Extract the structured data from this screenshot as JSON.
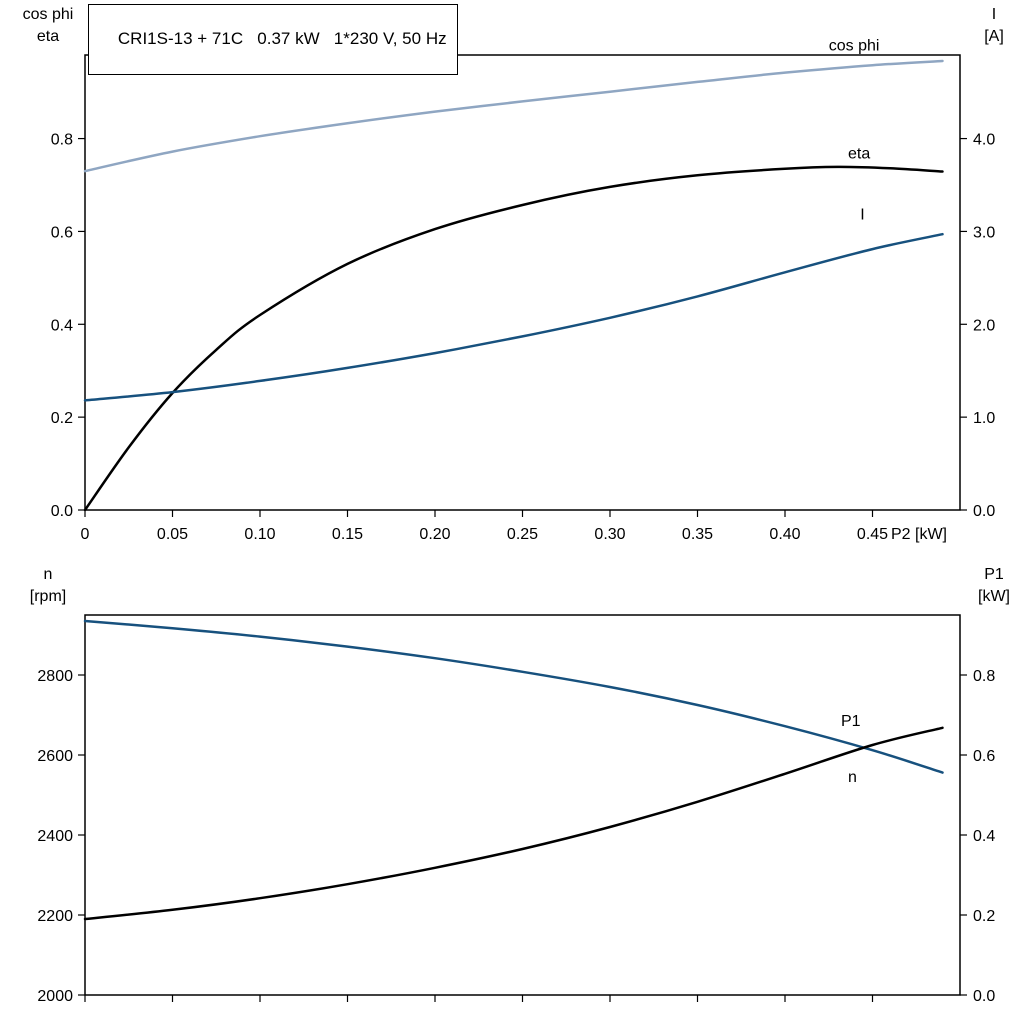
{
  "page": {
    "background": "#ffffff"
  },
  "colors": {
    "black": "#000000",
    "light_blue": "#8fa6c2",
    "dark_blue": "#17517e",
    "axis": "#000000"
  },
  "chart_data": [
    {
      "type": "line",
      "title": "CRI1S-13 + 71C   0.37 kW   1*230 V, 50 Hz",
      "xlabel": "P2 [kW]",
      "xlim": [
        0,
        0.5
      ],
      "grid": false,
      "x_ticks": [
        0,
        0.05,
        0.1,
        0.15,
        0.2,
        0.25,
        0.3,
        0.35,
        0.4,
        0.45
      ],
      "x_tick_labels": [
        "0",
        "0.05",
        "0.10",
        "0.15",
        "0.20",
        "0.25",
        "0.30",
        "0.35",
        "0.40",
        "0.45"
      ],
      "axes": {
        "left": {
          "header_lines": [
            "cos phi",
            "eta"
          ],
          "lim": [
            0,
            0.98
          ],
          "ticks": [
            0,
            0.2,
            0.4,
            0.6,
            0.8
          ],
          "tick_labels": [
            "0.0",
            "0.2",
            "0.4",
            "0.6",
            "0.8"
          ]
        },
        "right": {
          "header_lines": [
            "I",
            "[A]"
          ],
          "lim": [
            0,
            4.9
          ],
          "ticks": [
            0,
            1,
            2,
            3,
            4
          ],
          "tick_labels": [
            "0.0",
            "1.0",
            "2.0",
            "3.0",
            "4.0"
          ]
        }
      },
      "series": [
        {
          "name": "cos phi",
          "axis": "left",
          "color": "light_blue",
          "label_at": [
            0.425,
            0.99
          ],
          "x": [
            0,
            0.05,
            0.1,
            0.15,
            0.2,
            0.25,
            0.3,
            0.35,
            0.4,
            0.45,
            0.49
          ],
          "y": [
            0.73,
            0.772,
            0.805,
            0.833,
            0.858,
            0.88,
            0.901,
            0.922,
            0.942,
            0.958,
            0.967
          ]
        },
        {
          "name": "eta",
          "axis": "left",
          "color": "black",
          "label_at": [
            0.436,
            0.757
          ],
          "x": [
            0,
            0.025,
            0.05,
            0.075,
            0.1,
            0.15,
            0.2,
            0.25,
            0.3,
            0.35,
            0.4,
            0.43,
            0.46,
            0.49
          ],
          "y": [
            0,
            0.135,
            0.252,
            0.345,
            0.42,
            0.53,
            0.605,
            0.657,
            0.696,
            0.721,
            0.735,
            0.739,
            0.736,
            0.729
          ]
        },
        {
          "name": "I",
          "axis": "right",
          "color": "dark_blue",
          "label_at": [
            0.443,
            3.13
          ],
          "x": [
            0,
            0.05,
            0.1,
            0.15,
            0.2,
            0.25,
            0.3,
            0.35,
            0.4,
            0.45,
            0.49
          ],
          "y": [
            1.18,
            1.27,
            1.39,
            1.53,
            1.69,
            1.87,
            2.07,
            2.3,
            2.56,
            2.81,
            2.97
          ]
        }
      ]
    },
    {
      "type": "line",
      "title": "",
      "xlabel": "",
      "xlim": [
        0,
        0.5
      ],
      "grid": false,
      "x_ticks": [
        0,
        0.05,
        0.1,
        0.15,
        0.2,
        0.25,
        0.3,
        0.35,
        0.4,
        0.45
      ],
      "x_tick_labels": [],
      "axes": {
        "left": {
          "header_lines": [
            "n",
            "[rpm]"
          ],
          "lim": [
            2000,
            2950
          ],
          "ticks": [
            2000,
            2200,
            2400,
            2600,
            2800
          ],
          "tick_labels": [
            "2000",
            "2200",
            "2400",
            "2600",
            "2800"
          ]
        },
        "right": {
          "header_lines": [
            "P1",
            "[kW]"
          ],
          "lim": [
            0,
            0.95
          ],
          "ticks": [
            0,
            0.2,
            0.4,
            0.6,
            0.8
          ],
          "tick_labels": [
            "0.0",
            "0.2",
            "0.4",
            "0.6",
            "0.8"
          ]
        }
      },
      "series": [
        {
          "name": "n",
          "axis": "left",
          "color": "dark_blue",
          "label_at": [
            0.436,
            2532
          ],
          "x": [
            0,
            0.05,
            0.1,
            0.15,
            0.2,
            0.25,
            0.3,
            0.35,
            0.4,
            0.45,
            0.49
          ],
          "y": [
            2935,
            2917,
            2896,
            2871,
            2842,
            2808,
            2770,
            2725,
            2672,
            2612,
            2556
          ]
        },
        {
          "name": "P1",
          "axis": "right",
          "color": "black",
          "label_at": [
            0.432,
            0.672
          ],
          "x": [
            0,
            0.05,
            0.1,
            0.15,
            0.2,
            0.25,
            0.3,
            0.35,
            0.4,
            0.45,
            0.49
          ],
          "y": [
            0.19,
            0.213,
            0.242,
            0.277,
            0.318,
            0.365,
            0.42,
            0.483,
            0.553,
            0.625,
            0.668
          ]
        }
      ]
    }
  ]
}
